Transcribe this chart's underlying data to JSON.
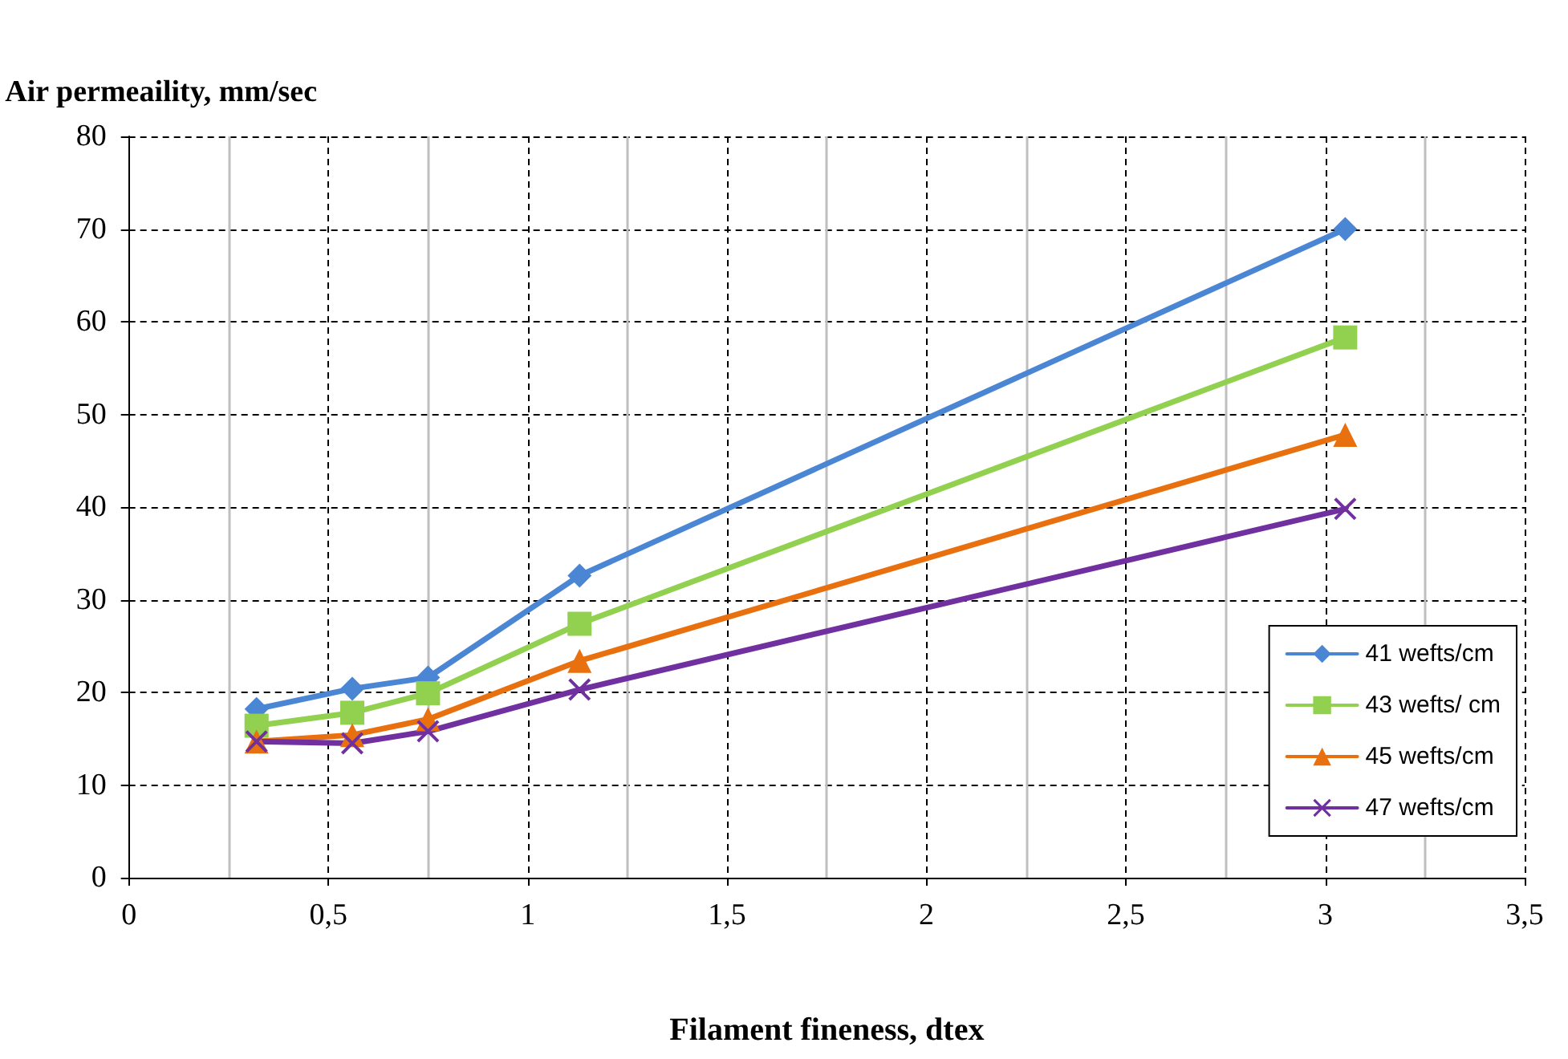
{
  "chart_data": {
    "type": "line",
    "ylabel": "Air permeaility, mm/sec",
    "xlabel": "Filament fineness, dtex",
    "x": [
      0.32,
      0.56,
      0.75,
      1.13,
      3.05
    ],
    "series": [
      {
        "name": "41 wefts/cm",
        "color": "#4a86d4",
        "marker": "diamond",
        "values": [
          18.2,
          20.4,
          21.6,
          32.6,
          70
        ]
      },
      {
        "name": "43 wefts/ cm",
        "color": "#92d050",
        "marker": "square",
        "values": [
          16.4,
          17.8,
          19.9,
          27.4,
          58.3
        ]
      },
      {
        "name": "45 wefts/cm",
        "color": "#e8700f",
        "marker": "triangle",
        "values": [
          14.7,
          15.4,
          17.1,
          23.4,
          47.8
        ]
      },
      {
        "name": "47 wefts/cm",
        "color": "#7030a0",
        "marker": "cross",
        "values": [
          14.7,
          14.5,
          15.8,
          20.3,
          39.8
        ]
      }
    ],
    "xlim": [
      0,
      3.5
    ],
    "xticks": [
      0,
      {
        "value": 0.5,
        "label": "0,5"
      },
      1,
      {
        "value": 1.5,
        "label": "1,5"
      },
      2,
      {
        "value": 2.5,
        "label": "2,5"
      },
      3,
      {
        "value": 3.5,
        "label": "3,5"
      }
    ],
    "ylim": [
      0,
      80
    ],
    "yticks": [
      0,
      10,
      20,
      30,
      40,
      50,
      60,
      70,
      80
    ],
    "grid": true,
    "legend": "right",
    "line_style": "solid"
  }
}
